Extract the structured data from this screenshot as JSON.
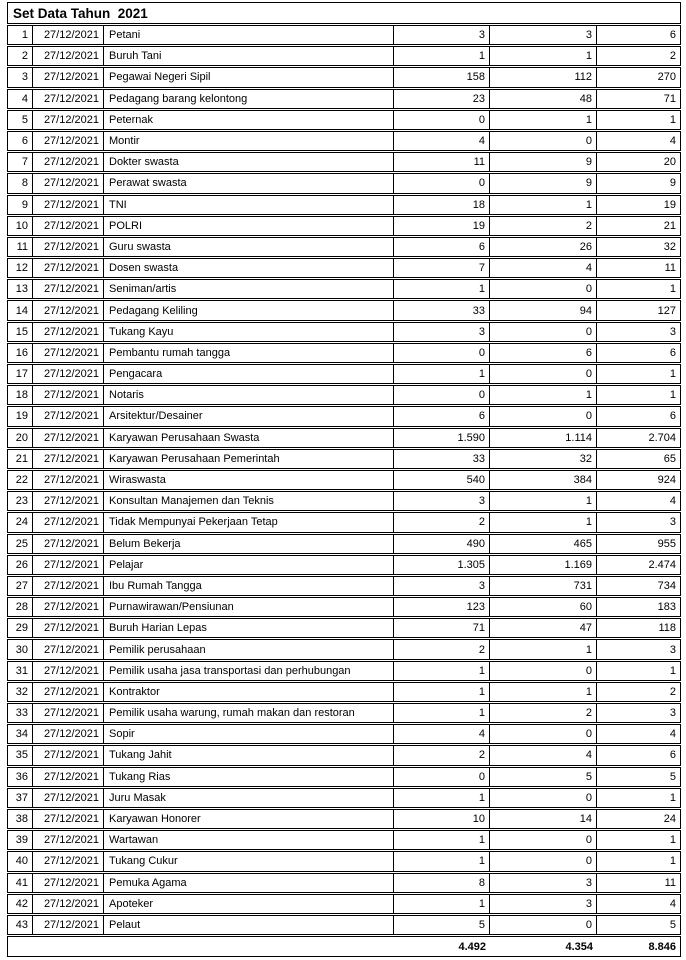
{
  "title": "Set Data Tahun  2021",
  "colors": {
    "background": "#ffffff",
    "border": "#000000",
    "text": "#000000"
  },
  "table": {
    "rows": [
      {
        "no": "1",
        "date": "27/12/2021",
        "occupation": "Petani",
        "v1": "3",
        "v2": "3",
        "v3": "6"
      },
      {
        "no": "2",
        "date": "27/12/2021",
        "occupation": "Buruh Tani",
        "v1": "1",
        "v2": "1",
        "v3": "2"
      },
      {
        "no": "3",
        "date": "27/12/2021",
        "occupation": "Pegawai Negeri Sipil",
        "v1": "158",
        "v2": "112",
        "v3": "270"
      },
      {
        "no": "4",
        "date": "27/12/2021",
        "occupation": "Pedagang barang kelontong",
        "v1": "23",
        "v2": "48",
        "v3": "71"
      },
      {
        "no": "5",
        "date": "27/12/2021",
        "occupation": "Peternak",
        "v1": "0",
        "v2": "1",
        "v3": "1"
      },
      {
        "no": "6",
        "date": "27/12/2021",
        "occupation": "Montir",
        "v1": "4",
        "v2": "0",
        "v3": "4"
      },
      {
        "no": "7",
        "date": "27/12/2021",
        "occupation": "Dokter swasta",
        "v1": "11",
        "v2": "9",
        "v3": "20"
      },
      {
        "no": "8",
        "date": "27/12/2021",
        "occupation": "Perawat swasta",
        "v1": "0",
        "v2": "9",
        "v3": "9"
      },
      {
        "no": "9",
        "date": "27/12/2021",
        "occupation": "TNI",
        "v1": "18",
        "v2": "1",
        "v3": "19"
      },
      {
        "no": "10",
        "date": "27/12/2021",
        "occupation": "POLRI",
        "v1": "19",
        "v2": "2",
        "v3": "21"
      },
      {
        "no": "11",
        "date": "27/12/2021",
        "occupation": "Guru swasta",
        "v1": "6",
        "v2": "26",
        "v3": "32"
      },
      {
        "no": "12",
        "date": "27/12/2021",
        "occupation": "Dosen swasta",
        "v1": "7",
        "v2": "4",
        "v3": "11"
      },
      {
        "no": "13",
        "date": "27/12/2021",
        "occupation": "Seniman/artis",
        "v1": "1",
        "v2": "0",
        "v3": "1"
      },
      {
        "no": "14",
        "date": "27/12/2021",
        "occupation": "Pedagang Keliling",
        "v1": "33",
        "v2": "94",
        "v3": "127"
      },
      {
        "no": "15",
        "date": "27/12/2021",
        "occupation": "Tukang Kayu",
        "v1": "3",
        "v2": "0",
        "v3": "3"
      },
      {
        "no": "16",
        "date": "27/12/2021",
        "occupation": "Pembantu rumah tangga",
        "v1": "0",
        "v2": "6",
        "v3": "6"
      },
      {
        "no": "17",
        "date": "27/12/2021",
        "occupation": "Pengacara",
        "v1": "1",
        "v2": "0",
        "v3": "1"
      },
      {
        "no": "18",
        "date": "27/12/2021",
        "occupation": "Notaris",
        "v1": "0",
        "v2": "1",
        "v3": "1"
      },
      {
        "no": "19",
        "date": "27/12/2021",
        "occupation": "Arsitektur/Desainer",
        "v1": "6",
        "v2": "0",
        "v3": "6"
      },
      {
        "no": "20",
        "date": "27/12/2021",
        "occupation": "Karyawan Perusahaan Swasta",
        "v1": "1.590",
        "v2": "1.114",
        "v3": "2.704"
      },
      {
        "no": "21",
        "date": "27/12/2021",
        "occupation": "Karyawan Perusahaan Pemerintah",
        "v1": "33",
        "v2": "32",
        "v3": "65"
      },
      {
        "no": "22",
        "date": "27/12/2021",
        "occupation": "Wiraswasta",
        "v1": "540",
        "v2": "384",
        "v3": "924"
      },
      {
        "no": "23",
        "date": "27/12/2021",
        "occupation": "Konsultan Manajemen dan Teknis",
        "v1": "3",
        "v2": "1",
        "v3": "4"
      },
      {
        "no": "24",
        "date": "27/12/2021",
        "occupation": "Tidak Mempunyai Pekerjaan Tetap",
        "v1": "2",
        "v2": "1",
        "v3": "3"
      },
      {
        "no": "25",
        "date": "27/12/2021",
        "occupation": "Belum Bekerja",
        "v1": "490",
        "v2": "465",
        "v3": "955"
      },
      {
        "no": "26",
        "date": "27/12/2021",
        "occupation": "Pelajar",
        "v1": "1.305",
        "v2": "1.169",
        "v3": "2.474"
      },
      {
        "no": "27",
        "date": "27/12/2021",
        "occupation": "Ibu Rumah Tangga",
        "v1": "3",
        "v2": "731",
        "v3": "734"
      },
      {
        "no": "28",
        "date": "27/12/2021",
        "occupation": "Purnawirawan/Pensiunan",
        "v1": "123",
        "v2": "60",
        "v3": "183"
      },
      {
        "no": "29",
        "date": "27/12/2021",
        "occupation": "Buruh Harian Lepas",
        "v1": "71",
        "v2": "47",
        "v3": "118"
      },
      {
        "no": "30",
        "date": "27/12/2021",
        "occupation": "Pemilik perusahaan",
        "v1": "2",
        "v2": "1",
        "v3": "3"
      },
      {
        "no": "31",
        "date": "27/12/2021",
        "occupation": "Pemilik usaha jasa transportasi dan perhubungan",
        "v1": "1",
        "v2": "0",
        "v3": "1"
      },
      {
        "no": "32",
        "date": "27/12/2021",
        "occupation": "Kontraktor",
        "v1": "1",
        "v2": "1",
        "v3": "2"
      },
      {
        "no": "33",
        "date": "27/12/2021",
        "occupation": "Pemilik usaha warung, rumah makan dan restoran",
        "v1": "1",
        "v2": "2",
        "v3": "3"
      },
      {
        "no": "34",
        "date": "27/12/2021",
        "occupation": "Sopir",
        "v1": "4",
        "v2": "0",
        "v3": "4"
      },
      {
        "no": "35",
        "date": "27/12/2021",
        "occupation": "Tukang Jahit",
        "v1": "2",
        "v2": "4",
        "v3": "6"
      },
      {
        "no": "36",
        "date": "27/12/2021",
        "occupation": "Tukang Rias",
        "v1": "0",
        "v2": "5",
        "v3": "5"
      },
      {
        "no": "37",
        "date": "27/12/2021",
        "occupation": "Juru Masak",
        "v1": "1",
        "v2": "0",
        "v3": "1"
      },
      {
        "no": "38",
        "date": "27/12/2021",
        "occupation": "Karyawan Honorer",
        "v1": "10",
        "v2": "14",
        "v3": "24"
      },
      {
        "no": "39",
        "date": "27/12/2021",
        "occupation": "Wartawan",
        "v1": "1",
        "v2": "0",
        "v3": "1"
      },
      {
        "no": "40",
        "date": "27/12/2021",
        "occupation": "Tukang Cukur",
        "v1": "1",
        "v2": "0",
        "v3": "1"
      },
      {
        "no": "41",
        "date": "27/12/2021",
        "occupation": "Pemuka Agama",
        "v1": "8",
        "v2": "3",
        "v3": "11"
      },
      {
        "no": "42",
        "date": "27/12/2021",
        "occupation": "Apoteker",
        "v1": "1",
        "v2": "3",
        "v3": "4"
      },
      {
        "no": "43",
        "date": "27/12/2021",
        "occupation": "Pelaut",
        "v1": "5",
        "v2": "0",
        "v3": "5"
      }
    ],
    "totals": {
      "v1": "4.492",
      "v2": "4.354",
      "v3": "8.846"
    }
  }
}
